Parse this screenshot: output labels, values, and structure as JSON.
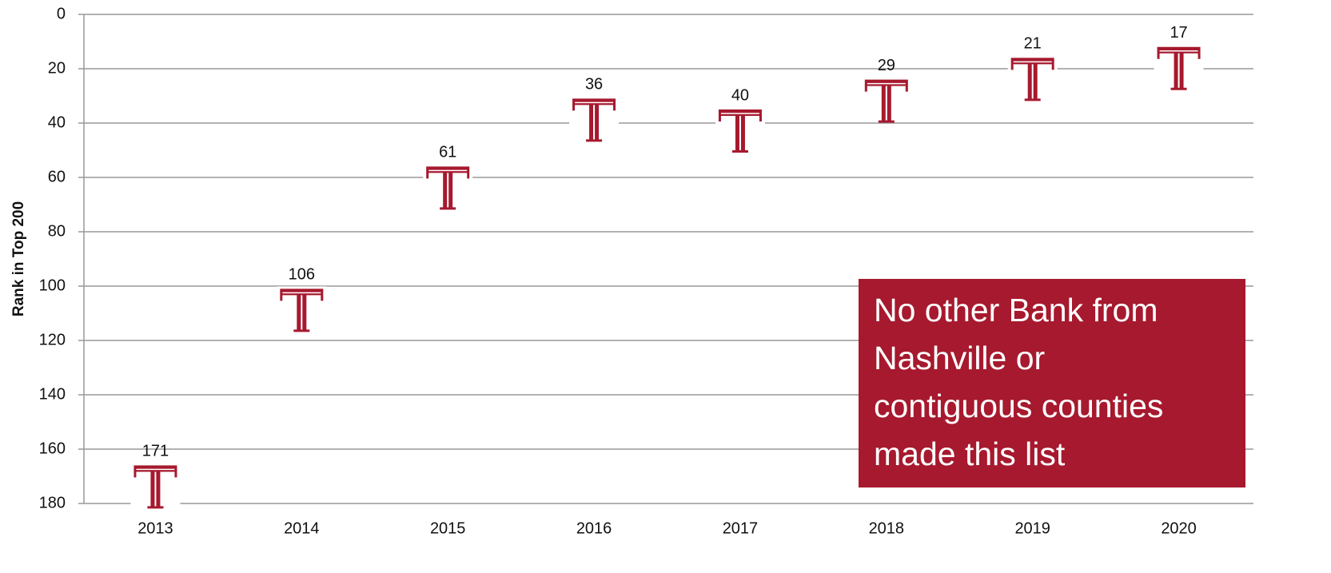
{
  "chart_data": {
    "type": "marker",
    "y_label": "Rank in Top 200",
    "categories": [
      "2013",
      "2014",
      "2015",
      "2016",
      "2017",
      "2018",
      "2019",
      "2020"
    ],
    "values": [
      171,
      106,
      61,
      36,
      40,
      29,
      21,
      17
    ],
    "color": "#a6192e",
    "ylim": [
      0,
      180
    ],
    "y_inverted": true,
    "yticks": [
      0,
      20,
      40,
      60,
      80,
      100,
      120,
      140,
      160,
      180
    ],
    "grid": true,
    "annotation": {
      "lines": [
        "No other Bank from",
        "Nashville or",
        "contiguous counties",
        "made this list"
      ],
      "color": "#a6192e"
    }
  }
}
